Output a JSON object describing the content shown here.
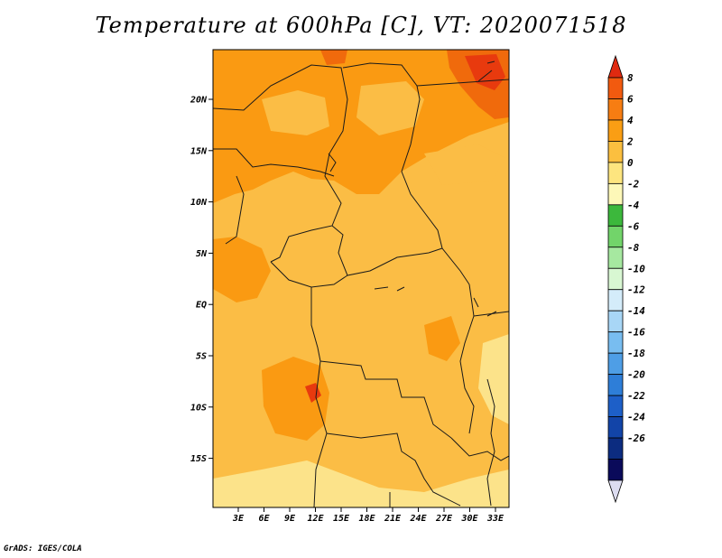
{
  "title": "Temperature at 600hPa [C], VT: 2020071518",
  "credit": "GrADS: IGES/COLA",
  "map": {
    "lat_labels": [
      "20N",
      "15N",
      "10N",
      "5N",
      "EQ",
      "5S",
      "10S",
      "15S"
    ],
    "lon_labels": [
      "3E",
      "6E",
      "9E",
      "12E",
      "15E",
      "18E",
      "21E",
      "24E",
      "27E",
      "30E",
      "33E"
    ],
    "field_colors": {
      "dark_orange": "#f06a0c",
      "orange": "#fa9a12",
      "light_orange": "#fbbd45",
      "pale_yellow": "#fce38a",
      "red": "#e83a0e",
      "border": "#1a1a1a"
    }
  },
  "colorbar": {
    "labels": [
      "8",
      "6",
      "4",
      "2",
      "0",
      "-2",
      "-4",
      "-6",
      "-8",
      "-10",
      "-12",
      "-14",
      "-16",
      "-18",
      "-20",
      "-22",
      "-24",
      "-26"
    ],
    "colors": [
      "#e02a10",
      "#f25a0f",
      "#f77d12",
      "#fa9e14",
      "#fbbf3f",
      "#fde57f",
      "#fdf8b8",
      "#3cb83c",
      "#72d46a",
      "#a6e8a0",
      "#d8f7d2",
      "#d4ecfa",
      "#a8d6f6",
      "#78bdf0",
      "#4e9ee6",
      "#2e7ed8",
      "#1d5fc8",
      "#1244a8",
      "#0c2c80",
      "#0a0a5a",
      "#dcdcf0"
    ]
  }
}
